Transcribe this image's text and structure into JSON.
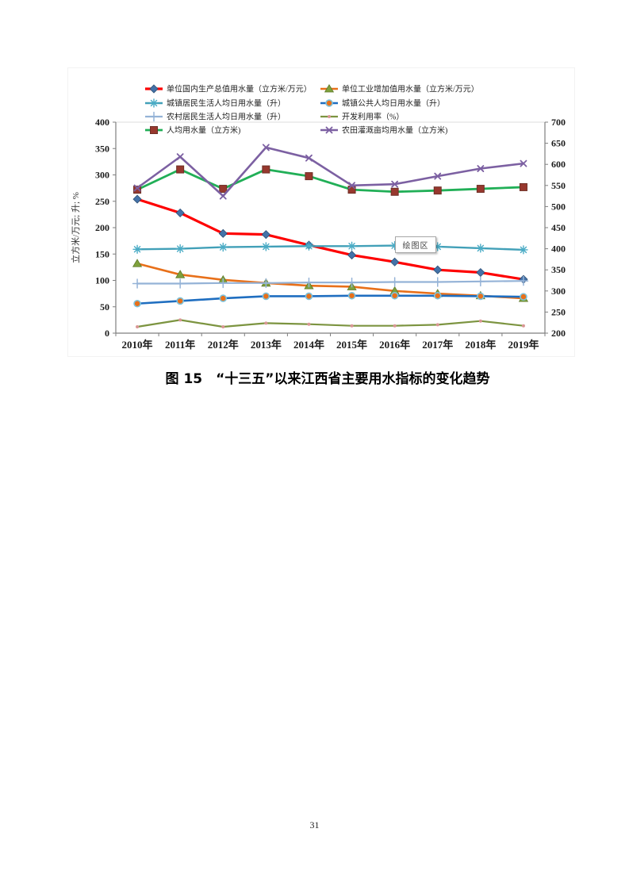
{
  "caption": "图 15　“十三五”以来江西省主要用水指标的变化趋势",
  "page_number": "31",
  "chart_data": {
    "type": "line",
    "plot_tooltip": "绘图区",
    "x_categories": [
      "2010年",
      "2011年",
      "2012年",
      "2013年",
      "2014年",
      "2015年",
      "2016年",
      "2017年",
      "2018年",
      "2019年"
    ],
    "left_axis": {
      "label": "立方米/万元; 升; %",
      "min": 0,
      "max": 400,
      "step": 50,
      "ticks": [
        0,
        50,
        100,
        150,
        200,
        250,
        300,
        350,
        400
      ]
    },
    "right_axis": {
      "min": 200,
      "max": 700,
      "step": 50,
      "ticks": [
        200,
        250,
        300,
        350,
        400,
        450,
        500,
        550,
        600,
        650,
        700
      ]
    },
    "grid": "off",
    "legend_position": "top-two-columns",
    "series": [
      {
        "key": "gdp-water-intensity",
        "name": "单位国内生产总值用水量（立方米/万元）",
        "axis": "left",
        "color": "#fe0000",
        "line_width": 3.2,
        "marker": "diamond",
        "marker_color": "#4472a8",
        "values": [
          254,
          228,
          189,
          187,
          167,
          148,
          135,
          120,
          115,
          102
        ]
      },
      {
        "key": "industrial-water-intensity",
        "name": "单位工业增加值用水量（立方米/万元）",
        "axis": "left",
        "color": "#e8701a",
        "line_width": 2.6,
        "marker": "triangle",
        "marker_color": "#7fa13c",
        "values": [
          132,
          111,
          101,
          95,
          90,
          88,
          80,
          75,
          71,
          66
        ]
      },
      {
        "key": "urban-resident-daily-water",
        "name": "城镇居民生活人均日用水量（升）",
        "axis": "left",
        "color": "#42a0b8",
        "line_width": 2.4,
        "marker": "asterisk",
        "marker_color": "#4bacc6",
        "values": [
          159,
          160,
          163,
          164,
          165,
          165,
          166,
          164,
          161,
          158
        ]
      },
      {
        "key": "urban-public-daily-water",
        "name": "城镇公共人均日用水量（升）",
        "axis": "left",
        "color": "#1f6ec0",
        "line_width": 2.6,
        "marker": "circle",
        "marker_color": "#e8701a",
        "values": [
          56,
          61,
          66,
          70,
          70,
          71,
          71,
          71,
          70,
          69
        ]
      },
      {
        "key": "rural-resident-daily-water",
        "name": "农村居民生活人均日用水量（升）",
        "axis": "left",
        "color": "#95b3d7",
        "line_width": 2.2,
        "marker": "plus",
        "marker_color": "#95b3d7",
        "values": [
          94,
          94,
          95,
          95,
          96,
          96,
          97,
          97,
          98,
          99
        ]
      },
      {
        "key": "development-utilization-rate",
        "name": "开发利用率（%）",
        "axis": "left",
        "color": "#7c9440",
        "line_width": 2.2,
        "marker": "dot",
        "marker_color": "#d99694",
        "values": [
          12,
          25,
          12,
          19,
          17,
          14,
          14,
          16,
          23,
          14
        ]
      },
      {
        "key": "per-capita-water-use",
        "name": "人均用水量（立方米)",
        "axis": "right",
        "color": "#21af57",
        "line_width": 2.8,
        "marker": "square",
        "marker_color": "#97382e",
        "values": [
          540,
          588,
          542,
          588,
          572,
          540,
          535,
          538,
          542,
          546
        ]
      },
      {
        "key": "irrigation-water-per-mu",
        "name": "农田灌溉亩均用水量（立方米)",
        "axis": "right",
        "color": "#7c60a2",
        "line_width": 2.6,
        "marker": "x",
        "marker_color": "#7c60a2",
        "values": [
          544,
          618,
          525,
          640,
          615,
          550,
          553,
          572,
          590,
          602
        ]
      }
    ]
  }
}
